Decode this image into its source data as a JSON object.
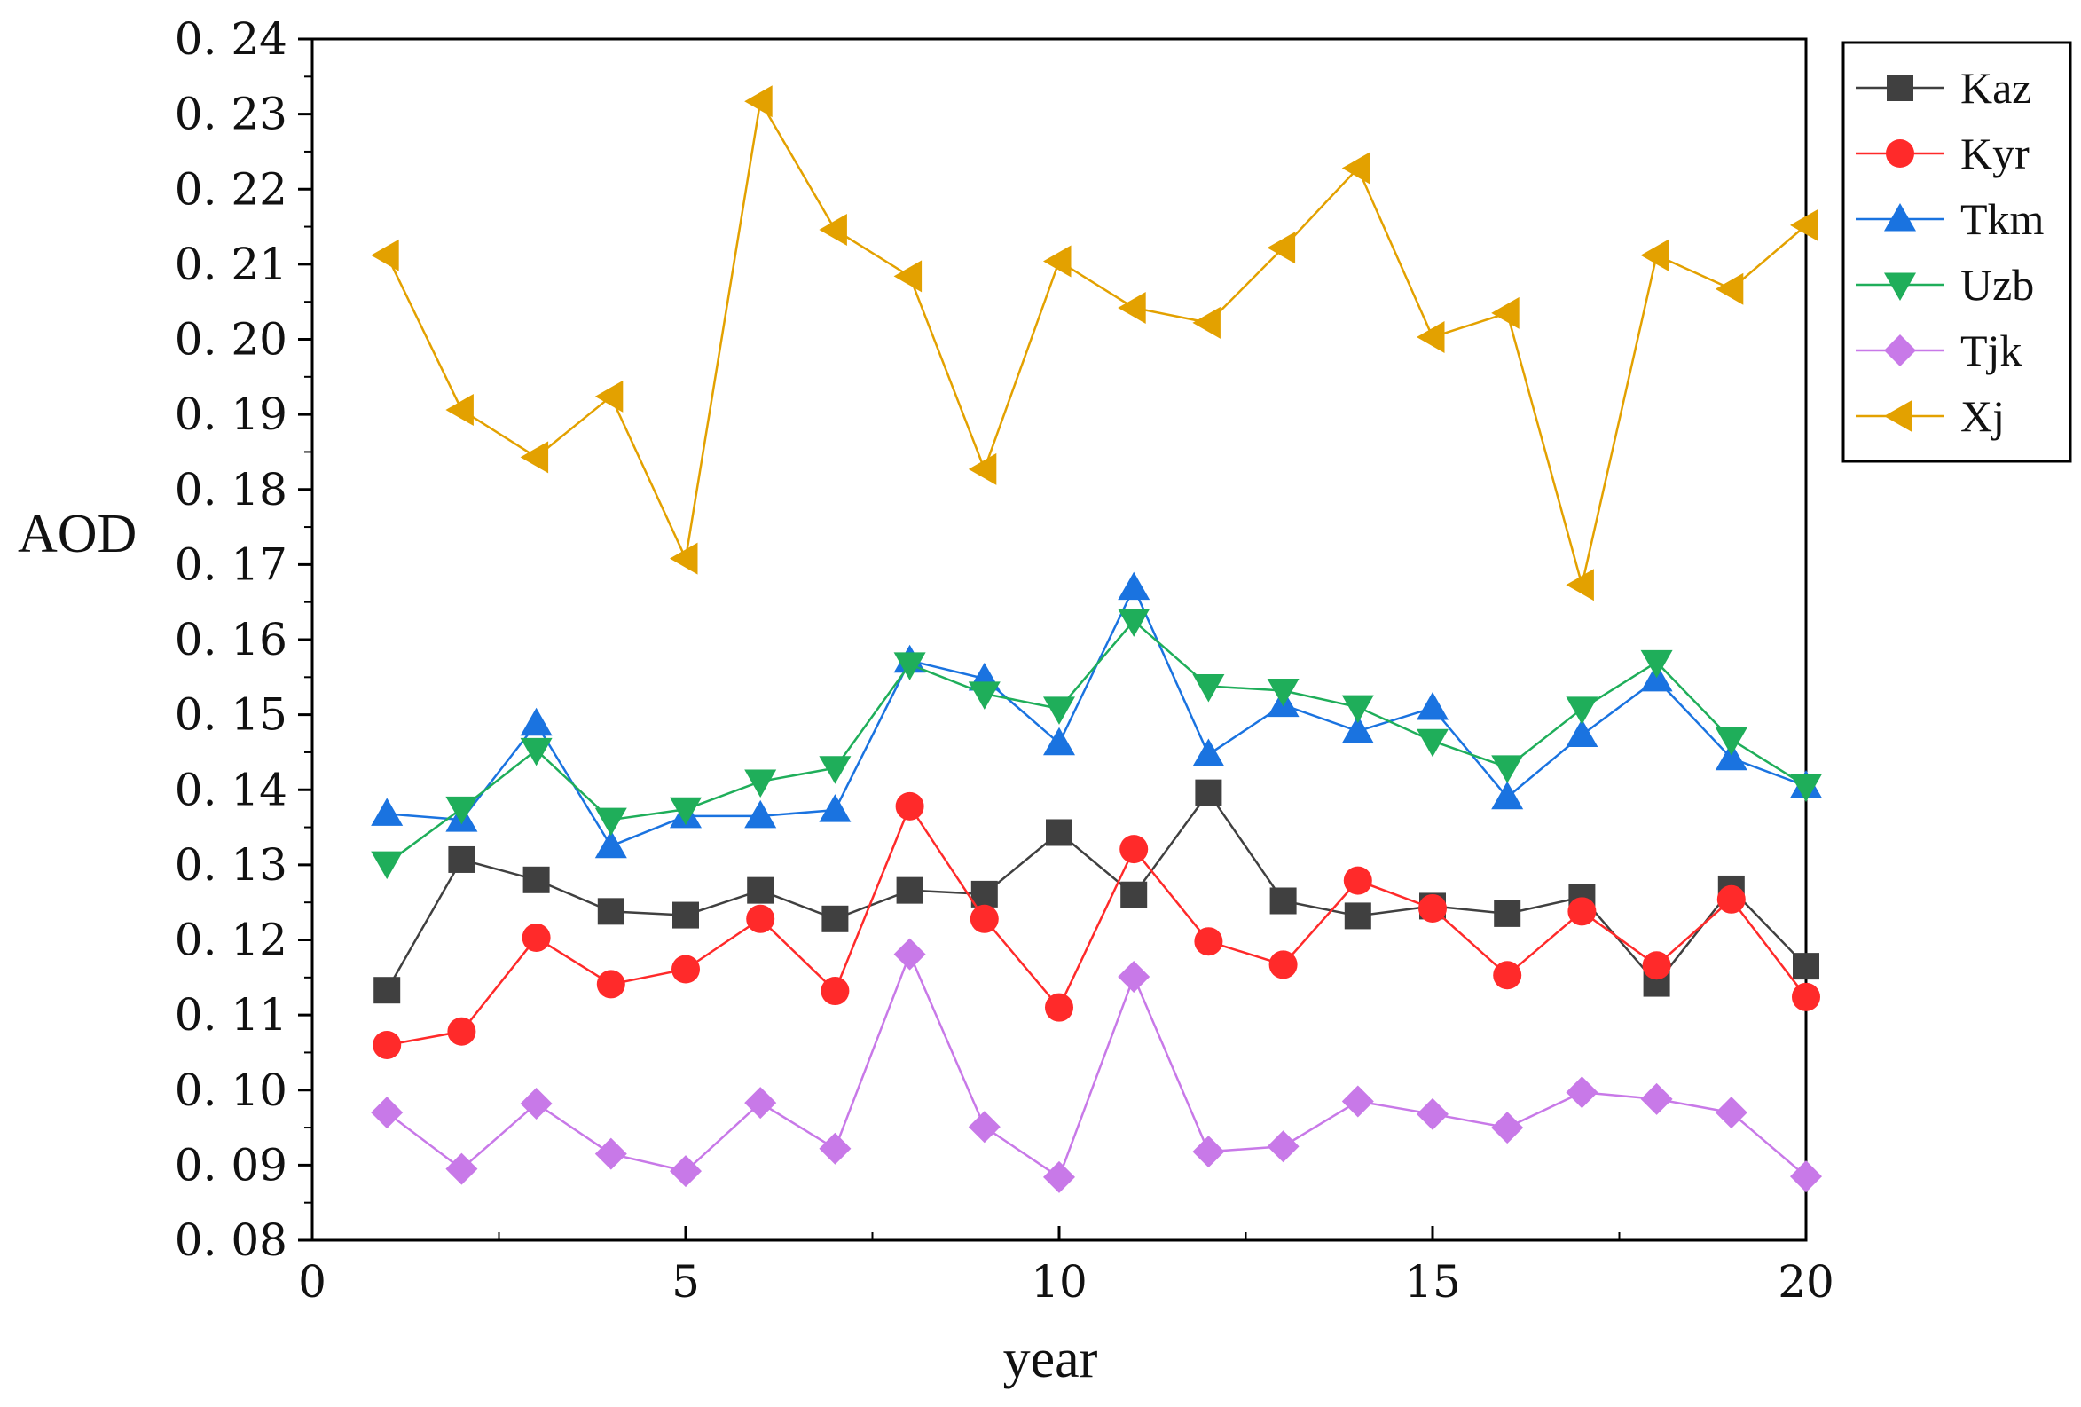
{
  "chart_data": {
    "type": "line",
    "title": "",
    "xlabel": "year",
    "ylabel": "AOD",
    "xlim": [
      0,
      20
    ],
    "ylim": [
      0.08,
      0.24
    ],
    "x_ticks": [
      "0",
      "5",
      "10",
      "15",
      "20"
    ],
    "y_ticks": [
      "0. 08",
      "0. 09",
      "0. 10",
      "0. 11",
      "0. 12",
      "0. 13",
      "0. 14",
      "0. 15",
      "0. 16",
      "0. 17",
      "0. 18",
      "0. 19",
      "0. 20",
      "0. 21",
      "0. 22",
      "0. 23",
      "0. 24"
    ],
    "legend_position": "top-right",
    "x": [
      1,
      2,
      3,
      4,
      5,
      6,
      7,
      8,
      9,
      10,
      11,
      12,
      13,
      14,
      15,
      16,
      17,
      18,
      19,
      20
    ],
    "series": [
      {
        "name": "Kaz",
        "marker": "square",
        "color": "#404040",
        "values": [
          0.1133,
          0.1307,
          0.128,
          0.1238,
          0.1233,
          0.1266,
          0.1228,
          0.1266,
          0.1261,
          0.1343,
          0.126,
          0.1396,
          0.1252,
          0.1232,
          0.1245,
          0.1235,
          0.1257,
          0.1142,
          0.1268,
          0.1165
        ]
      },
      {
        "name": "Kyr",
        "marker": "circle",
        "color": "#ff2a2a",
        "values": [
          0.106,
          0.1078,
          0.1203,
          0.1141,
          0.1161,
          0.1228,
          0.1132,
          0.1378,
          0.1228,
          0.111,
          0.1321,
          0.1198,
          0.1167,
          0.1279,
          0.1242,
          0.1153,
          0.1238,
          0.1166,
          0.1254,
          0.1124
        ]
      },
      {
        "name": "Tkm",
        "marker": "triangle-up",
        "color": "#1a73e0",
        "values": [
          0.1368,
          0.136,
          0.1488,
          0.1325,
          0.1365,
          0.1365,
          0.1373,
          0.1572,
          0.1548,
          0.1462,
          0.1669,
          0.1447,
          0.1513,
          0.1478,
          0.1509,
          0.139,
          0.1473,
          0.1547,
          0.1442,
          0.1405
        ]
      },
      {
        "name": "Uzb",
        "marker": "triangle-down",
        "color": "#1fae5a",
        "values": [
          0.1302,
          0.1375,
          0.1453,
          0.136,
          0.1374,
          0.1411,
          0.1429,
          0.1567,
          0.1528,
          0.1508,
          0.1625,
          0.1538,
          0.1532,
          0.151,
          0.1465,
          0.143,
          0.1508,
          0.157,
          0.1467,
          0.1405
        ]
      },
      {
        "name": "Tjk",
        "marker": "diamond",
        "color": "#c879e8",
        "values": [
          0.097,
          0.0895,
          0.0982,
          0.0915,
          0.0892,
          0.0983,
          0.0922,
          0.1181,
          0.0951,
          0.0884,
          0.1151,
          0.0918,
          0.0925,
          0.0985,
          0.0968,
          0.095,
          0.0997,
          0.0988,
          0.097,
          0.0885
        ]
      },
      {
        "name": "Xj",
        "marker": "triangle-left",
        "color": "#e3a100",
        "values": [
          0.2112,
          0.1906,
          0.1843,
          0.1924,
          0.1708,
          0.2317,
          0.2146,
          0.2084,
          0.1827,
          0.2104,
          0.2042,
          0.2022,
          0.2122,
          0.2228,
          0.2003,
          0.2035,
          0.1673,
          0.2112,
          0.2067,
          0.2152
        ]
      }
    ]
  }
}
